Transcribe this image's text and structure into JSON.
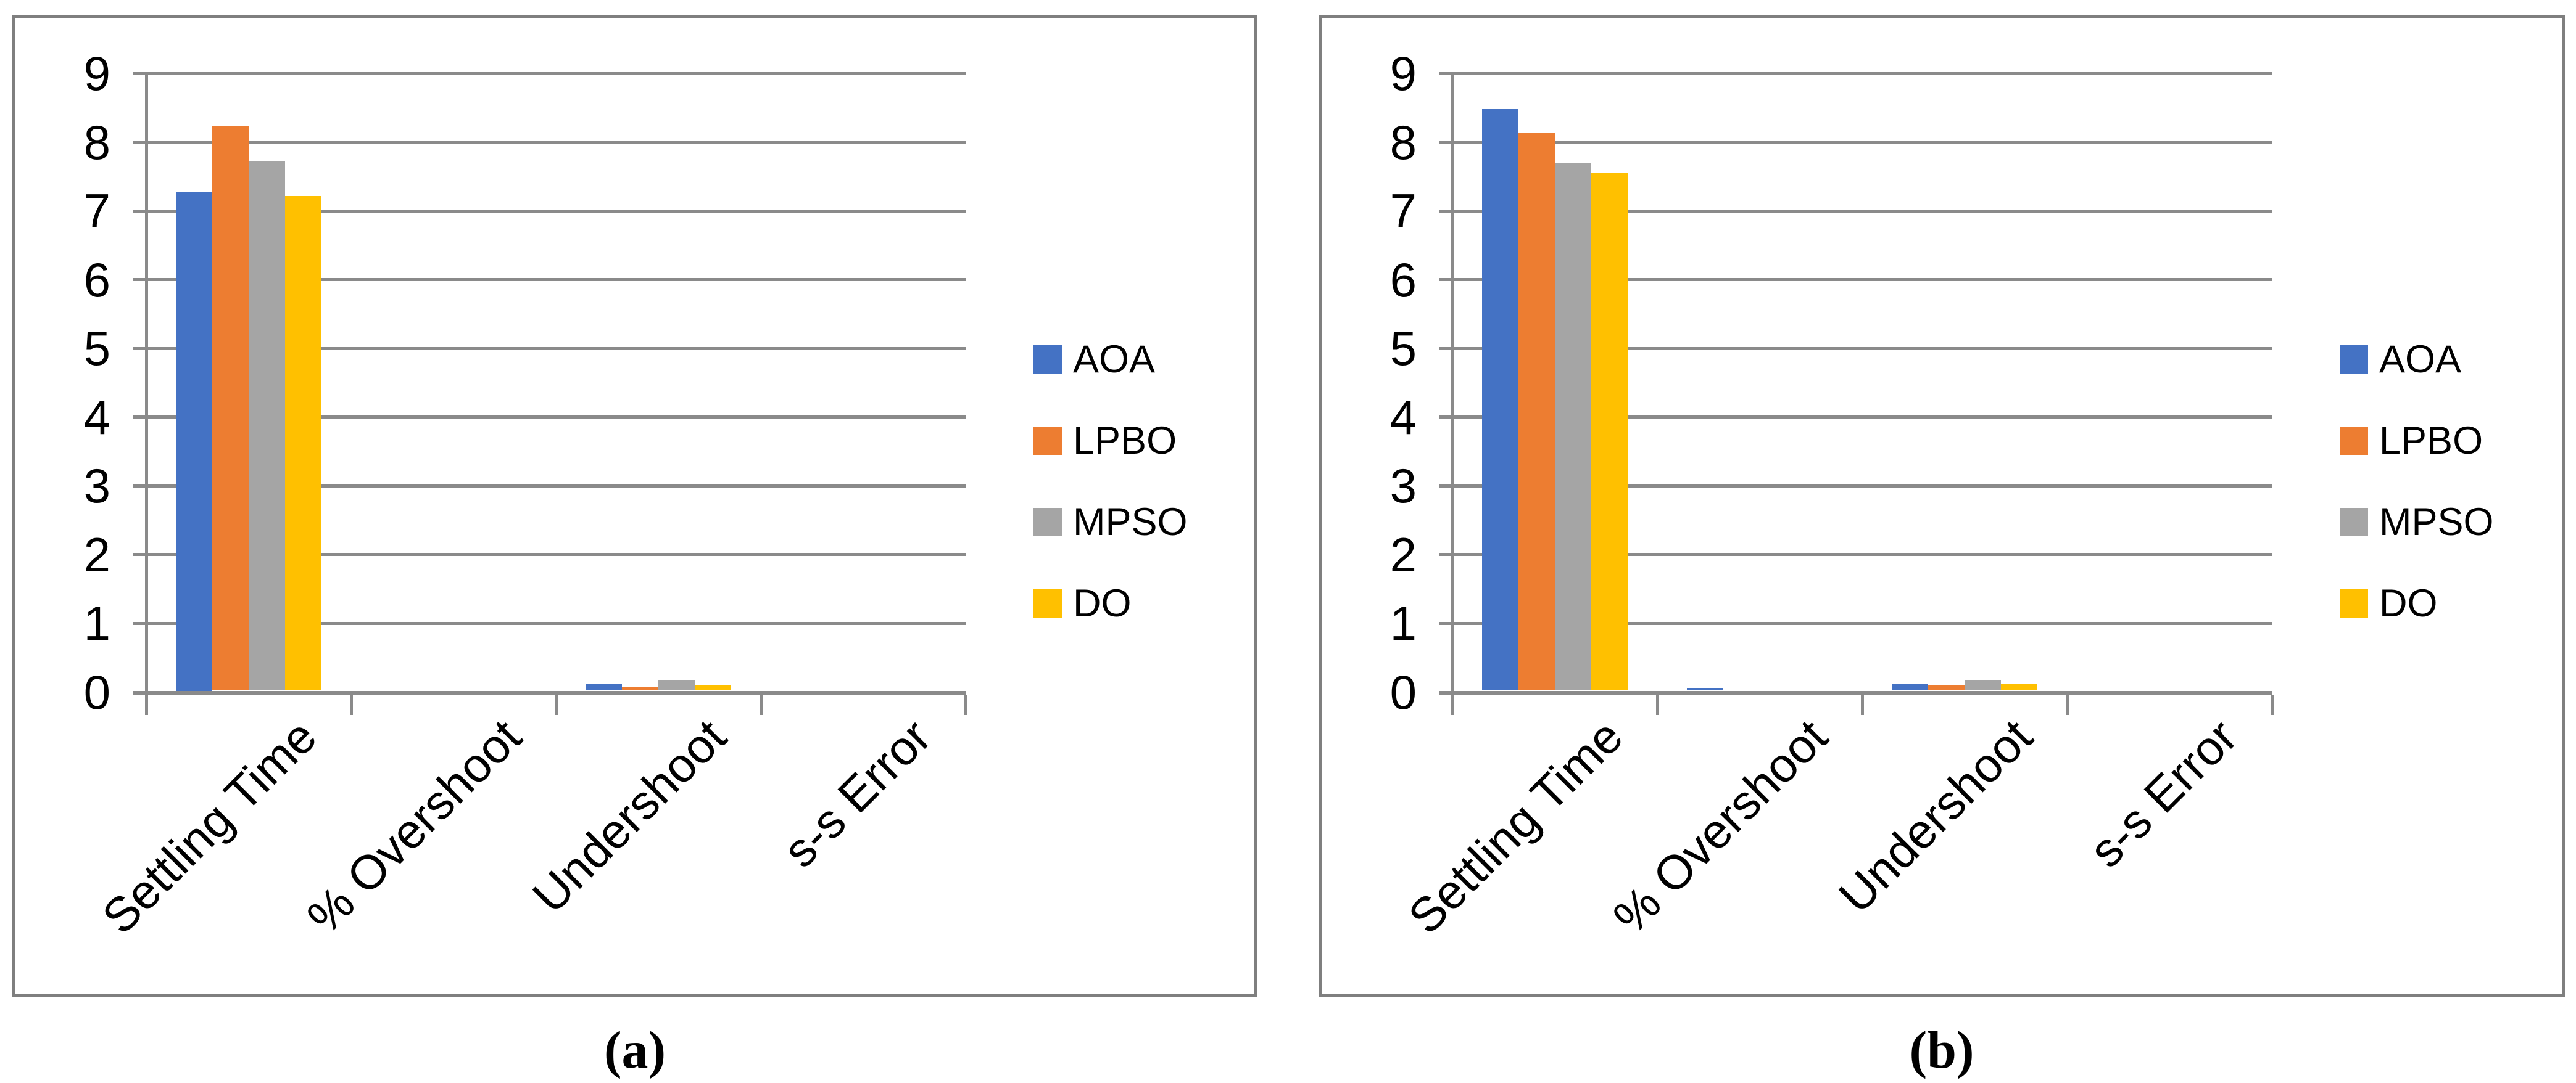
{
  "colors": {
    "series_blue": "#4472C4",
    "series_orange": "#ED7D31",
    "series_gray": "#A5A5A5",
    "series_yellow": "#FFC000",
    "grid": "#8A8A8A",
    "panel_border": "#7F7F7F",
    "text": "#000000"
  },
  "captions": {
    "a": "(a)",
    "b": "(b)"
  },
  "chart_data": [
    {
      "id": "a",
      "type": "bar",
      "title": "",
      "caption": "(a)",
      "categories": [
        "Settling Time",
        "% Overshoot",
        "Undershoot",
        "s-s Error"
      ],
      "series": [
        {
          "name": "AOA",
          "color": "#4472C4",
          "values": [
            7.25,
            0,
            0.1,
            0
          ]
        },
        {
          "name": "LPBO",
          "color": "#ED7D31",
          "values": [
            8.22,
            0,
            0.06,
            0
          ]
        },
        {
          "name": "MPSO",
          "color": "#A5A5A5",
          "values": [
            7.7,
            0,
            0.16,
            0
          ]
        },
        {
          "name": "DO",
          "color": "#FFC000",
          "values": [
            7.2,
            0,
            0.08,
            0
          ]
        }
      ],
      "ylim": [
        0,
        9
      ],
      "yticks": [
        "0",
        "1",
        "2",
        "3",
        "4",
        "5",
        "6",
        "7",
        "8",
        "9"
      ],
      "grid": true,
      "legend_position": "right",
      "legend_entries": [
        "AOA",
        "LPBO",
        "MPSO",
        "DO"
      ]
    },
    {
      "id": "b",
      "type": "bar",
      "title": "",
      "caption": "(b)",
      "categories": [
        "Settling Time",
        "% Overshoot",
        "Undershoot",
        "s-s Error"
      ],
      "series": [
        {
          "name": "AOA",
          "color": "#4472C4",
          "values": [
            8.46,
            0.04,
            0.1,
            0
          ]
        },
        {
          "name": "LPBO",
          "color": "#ED7D31",
          "values": [
            8.12,
            0,
            0.08,
            0
          ]
        },
        {
          "name": "MPSO",
          "color": "#A5A5A5",
          "values": [
            7.67,
            0,
            0.16,
            0
          ]
        },
        {
          "name": "DO",
          "color": "#FFC000",
          "values": [
            7.54,
            0,
            0.09,
            0
          ]
        }
      ],
      "ylim": [
        0,
        9
      ],
      "yticks": [
        "0",
        "1",
        "2",
        "3",
        "4",
        "5",
        "6",
        "7",
        "8",
        "9"
      ],
      "grid": true,
      "legend_position": "right",
      "legend_entries": [
        "AOA",
        "LPBO",
        "MPSO",
        "DO"
      ]
    }
  ]
}
